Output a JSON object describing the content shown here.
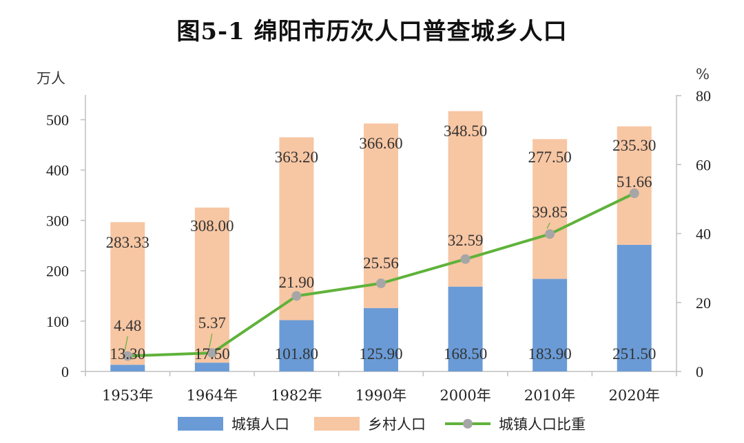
{
  "title": "图5-1 绵阳市历次人口普查城乡人口",
  "chart_data": {
    "type": "bar",
    "stacked": true,
    "categories": [
      "1953年",
      "1964年",
      "1982年",
      "1990年",
      "2000年",
      "2010年",
      "2020年"
    ],
    "series": [
      {
        "name": "城镇人口",
        "type": "bar",
        "axis": "left",
        "color": "#6a9bd6",
        "values": [
          13.3,
          17.5,
          101.8,
          125.9,
          168.5,
          183.9,
          251.5
        ],
        "labels": [
          "13.30",
          "17.50",
          "101.80",
          "125.90",
          "168.50",
          "183.90",
          "251.50"
        ]
      },
      {
        "name": "乡村人口",
        "type": "bar",
        "axis": "left",
        "color": "#f7c6a3",
        "values": [
          283.33,
          308.0,
          363.2,
          366.6,
          348.5,
          277.5,
          235.3
        ],
        "labels": [
          "283.33",
          "308.00",
          "363.20",
          "366.60",
          "348.50",
          "277.50",
          "235.30"
        ]
      },
      {
        "name": "城镇人口比重",
        "type": "line",
        "axis": "right",
        "color": "#5fb23a",
        "marker_color": "#a6a6a6",
        "values": [
          4.48,
          5.37,
          21.9,
          25.56,
          32.59,
          39.85,
          51.66
        ],
        "labels": [
          "4.48",
          "5.37",
          "21.90",
          "25.56",
          "32.59",
          "39.85",
          "51.66"
        ]
      }
    ],
    "y_left": {
      "unit": "万人",
      "min": 0,
      "max": 550,
      "ticks": [
        "0",
        "100",
        "200",
        "300",
        "400",
        "500"
      ]
    },
    "y_right": {
      "unit": "%",
      "min": 0,
      "max": 80,
      "ticks": [
        "0",
        "20",
        "40",
        "60",
        "80"
      ]
    },
    "grid": false,
    "legend": "bottom"
  }
}
